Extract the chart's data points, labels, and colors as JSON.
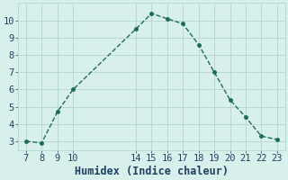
{
  "x": [
    7,
    8,
    9,
    10,
    14,
    15,
    16,
    17,
    18,
    19,
    20,
    21,
    22,
    23
  ],
  "y": [
    3.0,
    2.9,
    4.7,
    6.0,
    9.5,
    10.4,
    10.1,
    9.8,
    8.6,
    7.0,
    5.4,
    4.4,
    3.3,
    3.1
  ],
  "xlim": [
    6.5,
    23.5
  ],
  "ylim": [
    2.5,
    11.0
  ],
  "xticks": [
    7,
    8,
    9,
    10,
    14,
    15,
    16,
    17,
    18,
    19,
    20,
    21,
    22,
    23
  ],
  "yticks": [
    3,
    4,
    5,
    6,
    7,
    8,
    9,
    10
  ],
  "xlabel": "Humidex (Indice chaleur)",
  "line_color": "#1e6b5e",
  "marker_color": "#1e6b5e",
  "bg_color": "#d8f0eb",
  "grid_color": "#b8d8d2",
  "xlabel_color": "#1e4060",
  "tick_label_color": "#1e4060",
  "xlabel_fontsize": 8.5,
  "tick_fontsize": 7.5
}
